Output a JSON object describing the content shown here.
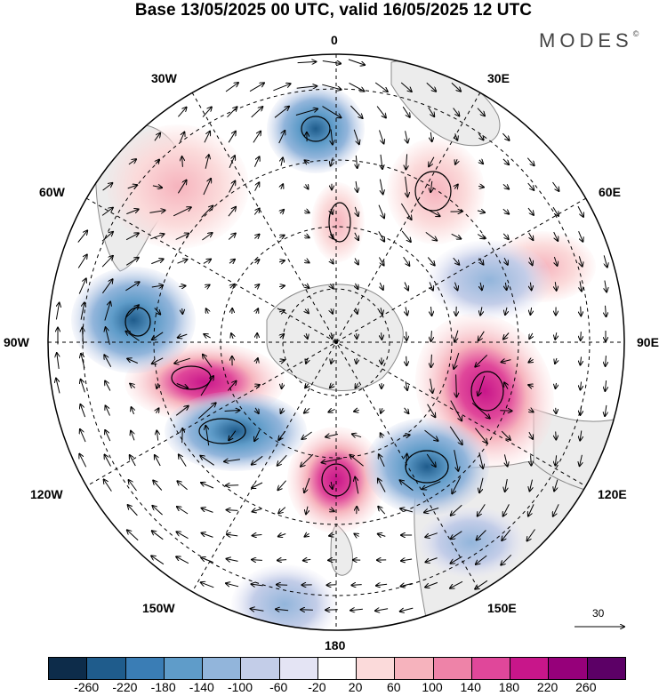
{
  "title": "Base 13/05/2025 00 UTC, valid 16/05/2025 12 UTC",
  "brand": "MODES",
  "brand_mark": "©",
  "longitude_labels": {
    "top": "0",
    "bottom": "180",
    "left": "90W",
    "right": "90E",
    "upper_left": "30W",
    "upper_right": "30E",
    "mid_left": "60W",
    "mid_right": "60E",
    "lower_left": "120W",
    "lower_right": "120E",
    "bottom_left": "150W",
    "bottom_right": "150E"
  },
  "reference_vector": {
    "label": "30"
  },
  "colorbar": {
    "labels": [
      "-260",
      "-220",
      "-180",
      "-140",
      "-100",
      "-60",
      "-20",
      "20",
      "60",
      "100",
      "140",
      "180",
      "220",
      "260"
    ],
    "colors": [
      "#0d2c4a",
      "#1f5c8c",
      "#3a7db5",
      "#5f9cc9",
      "#92b5db",
      "#c3cde8",
      "#e4e4f4",
      "#ffffff",
      "#fbdada",
      "#f6b3bd",
      "#ee83a8",
      "#e0479a",
      "#c8168a",
      "#96007a",
      "#5c0066"
    ]
  },
  "colors": {
    "ocean_neutral": "#ffffff",
    "land": "#ececec",
    "coast": "#8a8a8a",
    "grid": "#000000",
    "arrow": "#000000"
  }
}
